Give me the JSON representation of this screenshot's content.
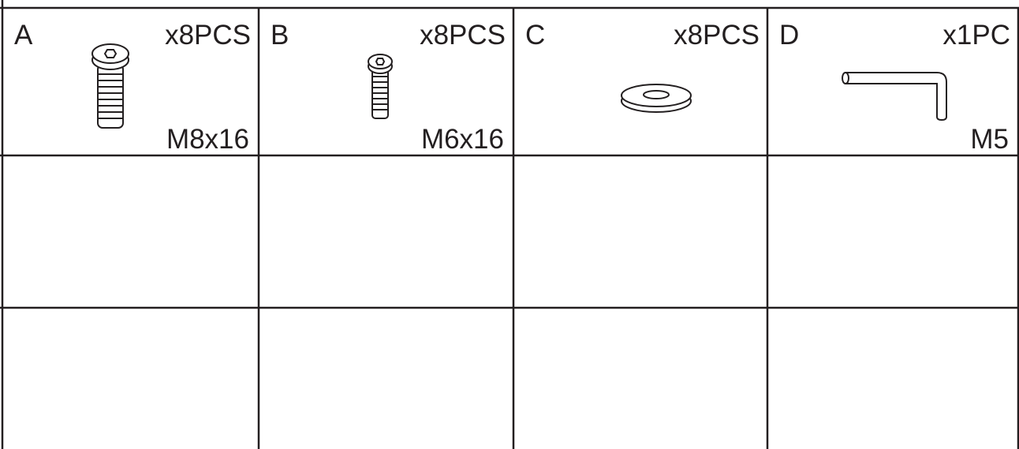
{
  "parts": [
    {
      "letter": "A",
      "quantity": "x8PCS",
      "size": "M8x16"
    },
    {
      "letter": "B",
      "quantity": "x8PCS",
      "size": "M6x16"
    },
    {
      "letter": "C",
      "quantity": "x8PCS"
    },
    {
      "letter": "D",
      "quantity": "x1PC",
      "size": "M5"
    }
  ]
}
